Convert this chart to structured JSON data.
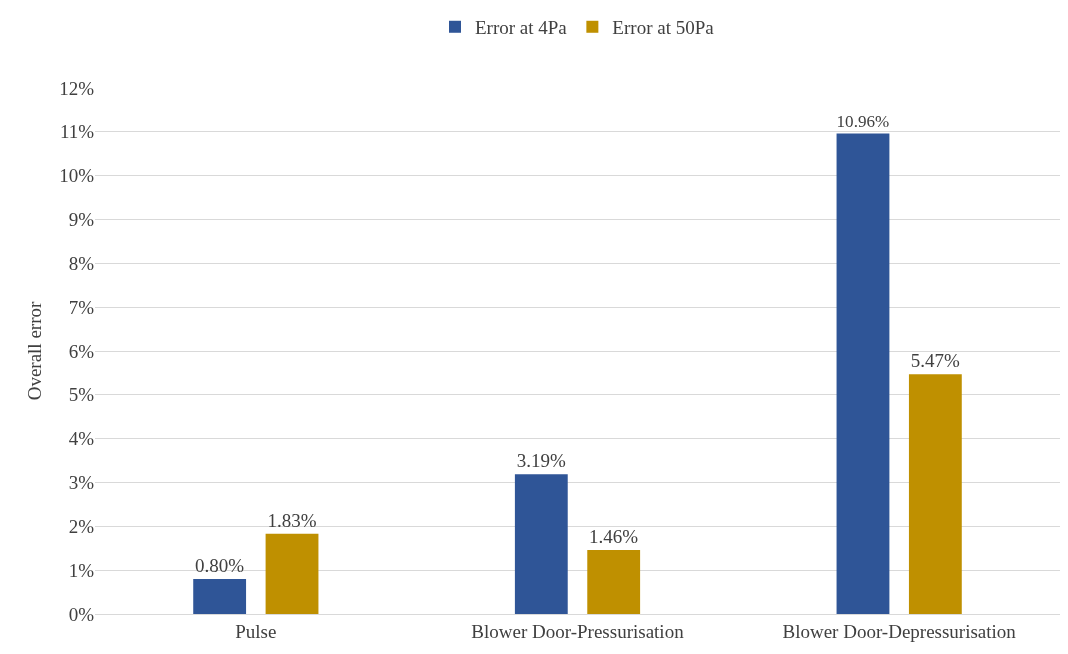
{
  "chart_data": {
    "type": "bar",
    "ylabel": "Overall error",
    "categories": [
      "Pulse",
      "Blower Door-Pressurisation",
      "Blower Door-Depressurisation"
    ],
    "series": [
      {
        "name": "Error at 4Pa",
        "color": "#2f5597",
        "values": [
          0.8,
          3.19,
          10.96
        ],
        "value_labels": [
          "0.80%",
          "3.19%",
          "10.96%"
        ]
      },
      {
        "name": "Error at 50Pa",
        "color": "#bf9000",
        "values": [
          1.83,
          1.46,
          5.47
        ],
        "value_labels": [
          "1.83%",
          "1.46%",
          "5.47%"
        ]
      }
    ],
    "ylim": [
      0,
      12
    ],
    "yticks": [
      {
        "value": 0,
        "label": "0%"
      },
      {
        "value": 1,
        "label": "1%"
      },
      {
        "value": 2,
        "label": "2%"
      },
      {
        "value": 3,
        "label": "3%"
      },
      {
        "value": 4,
        "label": "4%"
      },
      {
        "value": 5,
        "label": "5%"
      },
      {
        "value": 6,
        "label": "6%"
      },
      {
        "value": 7,
        "label": "7%"
      },
      {
        "value": 8,
        "label": "8%"
      },
      {
        "value": 9,
        "label": "9%"
      },
      {
        "value": 10,
        "label": "10%"
      },
      {
        "value": 11,
        "label": "11%"
      },
      {
        "value": 12,
        "label": "12%"
      }
    ],
    "grid": "y",
    "legend": "top"
  }
}
